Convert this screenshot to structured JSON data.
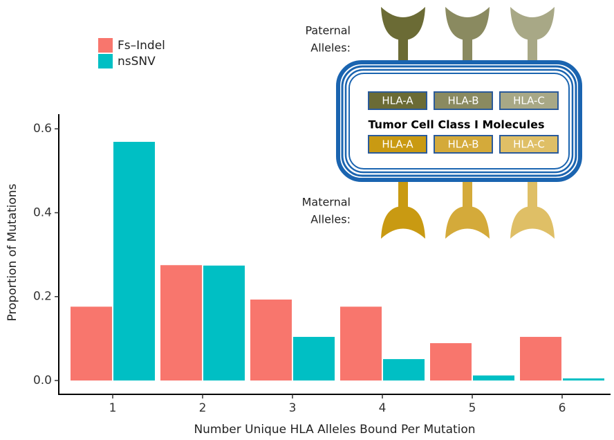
{
  "chart_data": {
    "type": "bar",
    "xlabel": "Number Unique HLA Alleles Bound Per Mutation",
    "ylabel": "Proportion of Mutations",
    "categories": [
      "1",
      "2",
      "3",
      "4",
      "5",
      "6"
    ],
    "series": [
      {
        "name": "Fs–Indel",
        "color": "#f8766d",
        "values": [
          0.176,
          0.275,
          0.193,
          0.176,
          0.089,
          0.104
        ]
      },
      {
        "name": "nsSNV",
        "color": "#00bfc4",
        "values": [
          0.569,
          0.274,
          0.104,
          0.051,
          0.012,
          0.005
        ]
      }
    ],
    "ylim": [
      -0.033,
      0.635
    ],
    "yticks": [
      {
        "value": 0,
        "label": "0.0"
      },
      {
        "value": 0.2,
        "label": "0.2"
      },
      {
        "value": 0.4,
        "label": "0.4"
      },
      {
        "value": 0.6,
        "label": "0.6"
      }
    ],
    "grid": false,
    "legend": "top-left",
    "inset": {
      "paternal_label": [
        "Paternal",
        "Alleles:"
      ],
      "maternal_label": [
        "Maternal",
        "Alleles:"
      ],
      "cell_label": "Tumor Cell Class I Molecules",
      "paternal_hla": [
        "HLA-A",
        "HLA-B",
        "HLA-C"
      ],
      "maternal_hla": [
        "HLA-A",
        "HLA-B",
        "HLA-C"
      ]
    }
  }
}
